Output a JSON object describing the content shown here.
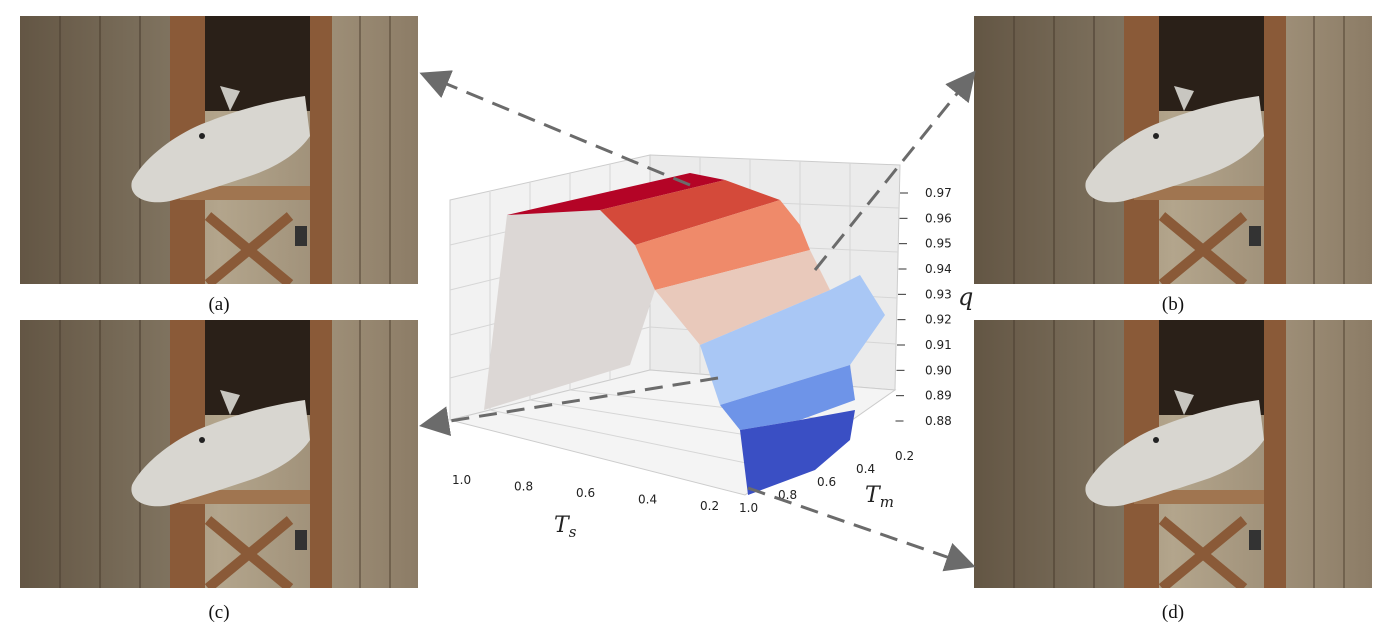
{
  "captions": {
    "a": "(a)",
    "b": "(b)",
    "c": "(c)",
    "d": "(d)"
  },
  "chart_data": {
    "type": "surface",
    "title": "",
    "xlabel": "T",
    "xlabel_sub": "s",
    "ylabel": "T",
    "ylabel_sub": "m",
    "zlabel": "q",
    "x_ticks": [
      "1.0",
      "0.8",
      "0.6",
      "0.4",
      "0.2"
    ],
    "y_ticks": [
      "0.2",
      "0.4",
      "0.6",
      "0.8",
      "1.0"
    ],
    "z_ticks": [
      "0.97",
      "0.96",
      "0.95",
      "0.94",
      "0.93",
      "0.92",
      "0.91",
      "0.90",
      "0.89",
      "0.88"
    ],
    "zlim": [
      0.88,
      0.97
    ],
    "colormap": "coolwarm",
    "grid": true
  }
}
